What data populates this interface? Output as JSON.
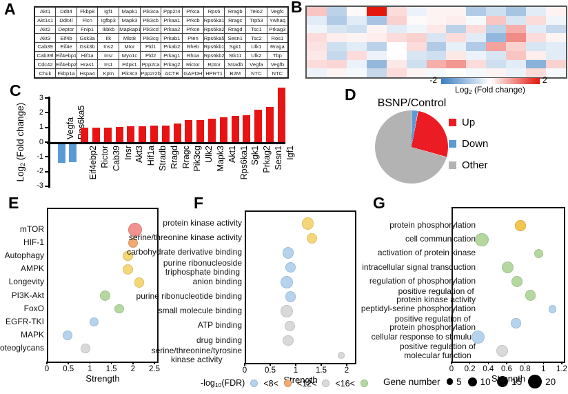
{
  "figure": {
    "panel_labels": {
      "A": "A",
      "B": "B",
      "C": "C",
      "D": "D",
      "E": "E",
      "F": "F",
      "G": "G"
    }
  },
  "colors": {
    "bar_up": "#e81414",
    "bar_down": "#5b9bd5",
    "heat_max": "#e3170c",
    "heat_min": "#3c7dc1",
    "pie": {
      "Up": "#ec1c24",
      "Down": "#5b9bd5",
      "Other": "#b3b3b3"
    },
    "bubble": {
      "blue": "#b5d3ed",
      "orange": "#f2aa72",
      "gray": "#d9d9d9",
      "green": "#b5d7a0",
      "yellow": "#f5d678",
      "red": "#f2928e",
      "gold": "#f3c44f"
    },
    "gene_dot": "#000000"
  },
  "chart_data": [
    {
      "type": "table",
      "panel": "A",
      "rows": [
        [
          "Akt1",
          "Ddit4",
          "Fkbp8",
          "Igf1",
          "Mapk1",
          "Pik3ca",
          "Ppp2r4",
          "Prkca",
          "Rps6",
          "Rragb",
          "Telo2",
          "Vegfc"
        ],
        [
          "Akt1s1",
          "Ddit4l",
          "Flcn",
          "Igfbp3",
          "Mapk3",
          "Pik3cb",
          "Prkaa1",
          "Prkcb",
          "Rps6ka1",
          "Rragc",
          "Trp53",
          "Ywhaq"
        ],
        [
          "Akt2",
          "Deptor",
          "Fnip1",
          "Ikbkb",
          "Mapkap1",
          "Pik3cd",
          "Prkaa2",
          "Prkce",
          "Rps6ka2",
          "Rragd",
          "Tsc1",
          "Prkag3"
        ],
        [
          "Akt3",
          "Eif4b",
          "Gsk3a",
          "Ilk",
          "Mlst8",
          "Pik3cg",
          "Prkab1",
          "Pten",
          "Rps6ka5",
          "Sesn1",
          "Tsc2",
          "Ros1"
        ],
        [
          "Cab39",
          "Eif4e",
          "Gsk3b",
          "Ins2",
          "Mtor",
          "Pld1",
          "Prkab2",
          "Rheb",
          "Rps6kb1",
          "Sgk1",
          "Ulk1",
          "Rraga"
        ],
        [
          "Cab39l",
          "Eif4ebp1",
          "Hif1a",
          "Insr",
          "Myo1c",
          "Pld2",
          "Prkag1",
          "Rhoa",
          "Rps6kb2",
          "Stk11",
          "Ulk2",
          "Tbp"
        ],
        [
          "Cdc42",
          "Eif4ebp2",
          "Hras1",
          "Irs1",
          "Pdpk1",
          "Ppp2ca",
          "Prkag2",
          "Rictor",
          "Rptor",
          "Stradb",
          "Vegfa",
          "Vegfb"
        ],
        [
          "Chuk",
          "Fkbp1a",
          "Hspa4",
          "Kptn",
          "Pik3c3",
          "Ppp2r2b",
          "ACTB",
          "GAPDH",
          "HPRT1",
          "B2M",
          "NTC",
          "NTC"
        ]
      ]
    },
    {
      "type": "heatmap",
      "panel": "B",
      "vmin": -2,
      "vmax": 2,
      "colorbar": {
        "min": "-2",
        "max": "2",
        "label_pre": "Log",
        "label_sub": "2",
        "label_post": "(Fold change)"
      },
      "values": [
        [
          0.5,
          -0.7,
          0.05,
          2.0,
          0.3,
          -0.2,
          0.1,
          0.1,
          -0.8,
          -0.5,
          -0.9,
          -0.3,
          0.1
        ],
        [
          -0.3,
          -0.8,
          -0.3,
          -0.9,
          0.4,
          0.05,
          0.1,
          0.15,
          -0.1,
          0.5,
          -0.4,
          0.3,
          -0.15
        ],
        [
          -0.15,
          -0.4,
          -0.5,
          0.1,
          -0.3,
          -0.15,
          0.2,
          -0.7,
          0.3,
          -0.7,
          0.7,
          -0.3,
          -0.6
        ],
        [
          0.3,
          0.15,
          0.1,
          0.15,
          0.3,
          0.4,
          -0.4,
          0.3,
          -0.3,
          -1.1,
          1.0,
          0.3,
          0.1
        ],
        [
          0.25,
          -0.5,
          -0.3,
          -0.7,
          0.0,
          0.3,
          -0.8,
          -0.25,
          -0.8,
          0.8,
          0.4,
          -0.4,
          -0.3
        ],
        [
          0.2,
          -0.6,
          0.3,
          -0.2,
          0.0,
          -0.4,
          -0.5,
          0.2,
          -0.2,
          -0.4,
          0.5,
          0.15,
          -0.3
        ],
        [
          0.3,
          0.35,
          -0.2,
          -1.1,
          0.2,
          -0.5,
          0.7,
          0.9,
          0.3,
          -0.5,
          -0.3,
          -1.2,
          0.4
        ],
        [
          -0.2,
          0.1,
          -0.1,
          -0.6,
          0.3,
          0.1,
          -0.1,
          0.0,
          -0.1,
          0.1,
          -0.2,
          0.3,
          -0.1
        ]
      ]
    },
    {
      "type": "bar",
      "panel": "C",
      "ylabel_pre": "Log",
      "ylabel_sub": "2",
      "ylabel_post": "(Fold change)",
      "ylim": [
        -3,
        3
      ],
      "yticks": [
        "3",
        "2",
        "1",
        "0",
        "-1",
        "-2",
        "-3"
      ],
      "categories": [
        "Vegfa",
        "Rps6ka5",
        "Eif4ebp2",
        "Rictor",
        "Cab39",
        "Insr",
        "Akt3",
        "Hif1a",
        "Stradb",
        "Rragd",
        "Rragc",
        "Pik3cg",
        "Ulk2",
        "Mapk3",
        "Akt1",
        "Rps6ka1",
        "Sgk1",
        "Prkag2",
        "Sesn1",
        "Igf1"
      ],
      "values": [
        -1.25,
        -1.2,
        0.97,
        1.0,
        1.0,
        1.05,
        1.07,
        1.1,
        1.12,
        1.13,
        1.25,
        1.5,
        1.52,
        1.6,
        1.68,
        1.8,
        1.82,
        2.2,
        2.4,
        3.7
      ],
      "bar_colors": [
        "down",
        "down",
        "up",
        "up",
        "up",
        "up",
        "up",
        "up",
        "up",
        "up",
        "up",
        "up",
        "up",
        "up",
        "up",
        "up",
        "up",
        "up",
        "up",
        "up"
      ]
    },
    {
      "type": "pie",
      "panel": "D",
      "title": "BSNP/Control",
      "slices": [
        {
          "label": "Up",
          "value": 26.6,
          "color": "Up"
        },
        {
          "label": "Down",
          "value": 2.8,
          "color": "Down"
        },
        {
          "label": "Other",
          "value": 70.6,
          "color": "Other"
        }
      ],
      "draw_order": [
        1,
        0,
        2
      ]
    },
    {
      "type": "scatter",
      "panel": "E",
      "xlabel": "Strength",
      "xlim": [
        0,
        2.5
      ],
      "xticks": [
        "0",
        "0.5",
        "1",
        "1.5",
        "2",
        "2.5"
      ],
      "points": [
        {
          "label": "mTOR",
          "x": 2.05,
          "gene_number": 19,
          "color": "red"
        },
        {
          "label": "HIF-1",
          "x": 2.0,
          "gene_number": 11,
          "color": "orange"
        },
        {
          "label": "Autophagy",
          "x": 1.88,
          "gene_number": 12,
          "color": "yellow"
        },
        {
          "label": "AMPK",
          "x": 1.88,
          "gene_number": 13,
          "color": "yellow"
        },
        {
          "label": "Longevity",
          "x": 2.15,
          "gene_number": 12,
          "color": "yellow"
        },
        {
          "label": "PI3K-Akt",
          "x": 1.35,
          "gene_number": 13,
          "color": "green"
        },
        {
          "label": "FoxO",
          "x": 1.68,
          "gene_number": 11,
          "color": "green"
        },
        {
          "label": "EGFR-TKI",
          "x": 1.1,
          "gene_number": 10,
          "color": "blue"
        },
        {
          "label": "MAPK",
          "x": 0.48,
          "gene_number": 11,
          "color": "blue"
        },
        {
          "label": "Proteoglycans",
          "x": 0.9,
          "gene_number": 11,
          "color": "gray"
        }
      ]
    },
    {
      "type": "scatter",
      "panel": "F",
      "xlabel": "Strength",
      "xlim": [
        0,
        2
      ],
      "xticks": [
        "0",
        "0.5",
        "1",
        "1.5",
        "2"
      ],
      "points": [
        {
          "label": "protein kinase activity",
          "x": 1.24,
          "gene_number": 16,
          "color": "yellow"
        },
        {
          "label": "serine/threonine kinase activity",
          "x": 1.32,
          "gene_number": 13,
          "color": "yellow"
        },
        {
          "label": "carbohydrate derivative binding",
          "x": 0.85,
          "gene_number": 15,
          "color": "blue"
        },
        {
          "label": "purine ribonucleoside\ntriphosphate binding",
          "x": 0.9,
          "gene_number": 14,
          "color": "blue"
        },
        {
          "label": "anion binding",
          "x": 0.83,
          "gene_number": 17,
          "color": "blue"
        },
        {
          "label": "purine ribonucleotide binding",
          "x": 0.9,
          "gene_number": 14,
          "color": "blue"
        },
        {
          "label": "small molecule binding",
          "x": 0.82,
          "gene_number": 17,
          "color": "gray"
        },
        {
          "label": "ATP binding",
          "x": 0.88,
          "gene_number": 13,
          "color": "gray"
        },
        {
          "label": "drug binding",
          "x": 0.85,
          "gene_number": 14,
          "color": "gray"
        },
        {
          "label": "serine/threonine/tyrosine\nkinase activity",
          "x": 1.89,
          "gene_number": 5,
          "color": "gray"
        }
      ]
    },
    {
      "type": "scatter",
      "panel": "G",
      "xlabel": "Strength",
      "xlim": [
        0,
        1.2
      ],
      "xticks": [
        "0",
        "0.2",
        "0.4",
        "0.6",
        "0.8",
        "1",
        "1.2"
      ],
      "points": [
        {
          "label": "protein phosphorylation",
          "x": 0.75,
          "gene_number": 13,
          "color": "gold"
        },
        {
          "label": "cell communication",
          "x": 0.33,
          "gene_number": 19,
          "color": "green"
        },
        {
          "label": "activation of protein kinase",
          "x": 0.95,
          "gene_number": 11,
          "color": "green"
        },
        {
          "label": "intracellular signal transduction",
          "x": 0.61,
          "gene_number": 16,
          "color": "green"
        },
        {
          "label": "regulation of phosphorylation",
          "x": 0.71,
          "gene_number": 14,
          "color": "green"
        },
        {
          "label": "positive regulation of\nprotein kinase activity",
          "x": 0.86,
          "gene_number": 13,
          "color": "green"
        },
        {
          "label": "peptidyl-serine phosphorylation",
          "x": 1.1,
          "gene_number": 8,
          "color": "blue"
        },
        {
          "label": "positive regulation of\nprotein phosphorylation",
          "x": 0.7,
          "gene_number": 12,
          "color": "blue"
        },
        {
          "label": "cellular response to stimulus",
          "x": 0.29,
          "gene_number": 19,
          "color": "blue"
        },
        {
          "label": "positive regulation of\nmolecular function",
          "x": 0.55,
          "gene_number": 16,
          "color": "gray"
        }
      ]
    }
  ],
  "legends": {
    "fdr": {
      "title_pre": "-log",
      "title_sub": "10",
      "title_post": "(FDR)",
      "sequence": [
        {
          "color": "blue"
        },
        {
          "text": "<8<"
        },
        {
          "color": "orange"
        },
        {
          "text": "<12<"
        },
        {
          "color": "gray"
        },
        {
          "text": "<16<"
        },
        {
          "color": "green"
        }
      ]
    },
    "gene_number": {
      "title": "Gene number",
      "items": [
        {
          "n": 5,
          "text": "5"
        },
        {
          "n": 10,
          "text": "10"
        },
        {
          "n": 15,
          "text": "15"
        },
        {
          "n": 20,
          "text": "20"
        }
      ]
    }
  }
}
